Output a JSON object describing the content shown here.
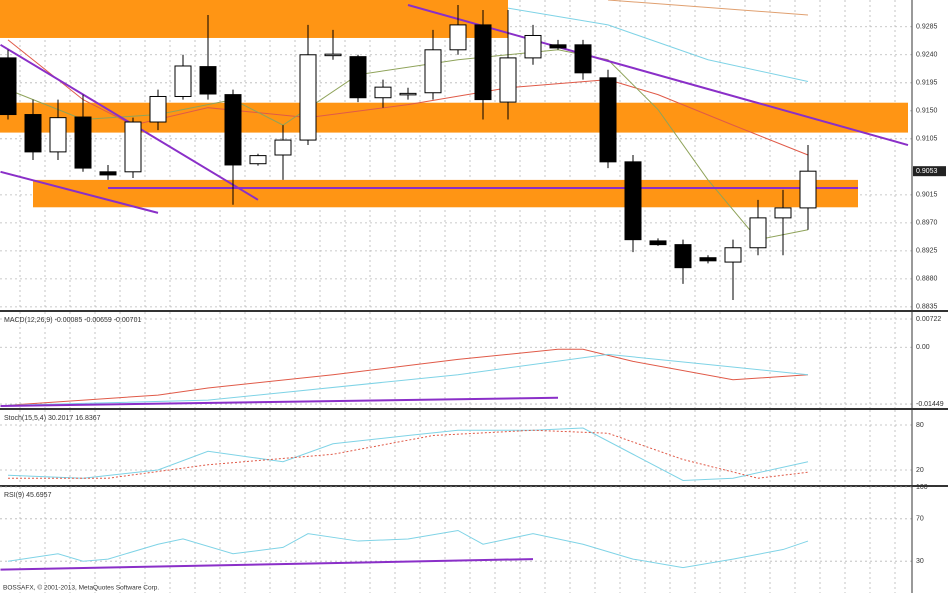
{
  "chart_data": [
    {
      "type": "candlestick",
      "open": [
        0.9235,
        0.9144,
        0.9084,
        0.914,
        0.9052,
        0.9052,
        0.9132,
        0.9173,
        0.9221,
        0.9176,
        0.9065,
        0.9079,
        0.9103,
        0.924,
        0.9237,
        0.9171,
        0.9177,
        0.9179,
        0.9248,
        0.9288,
        0.9164,
        0.9235,
        0.9256,
        0.9256,
        0.9203,
        0.9068,
        0.8941,
        0.8935,
        0.8914,
        0.8907,
        0.893,
        0.8978,
        0.8994
      ],
      "high": [
        0.9248,
        0.9168,
        0.9168,
        0.9176,
        0.9063,
        0.9139,
        0.9184,
        0.924,
        0.9304,
        0.9184,
        0.9081,
        0.9127,
        0.9288,
        0.928,
        0.924,
        0.92,
        0.9187,
        0.928,
        0.932,
        0.9312,
        0.9312,
        0.9288,
        0.9264,
        0.9264,
        0.9216,
        0.9079,
        0.8945,
        0.8943,
        0.8918,
        0.8943,
        0.9007,
        0.9023,
        0.9095
      ],
      "low": [
        0.9136,
        0.9071,
        0.9071,
        0.9052,
        0.9039,
        0.9042,
        0.9119,
        0.9168,
        0.9168,
        0.8999,
        0.9062,
        0.9039,
        0.9095,
        0.9232,
        0.9164,
        0.9155,
        0.9168,
        0.9168,
        0.924,
        0.9136,
        0.9136,
        0.9224,
        0.9248,
        0.92,
        0.9058,
        0.8923,
        0.8933,
        0.8872,
        0.8905,
        0.8846,
        0.8918,
        0.8918,
        0.8959
      ],
      "close": [
        0.9144,
        0.9084,
        0.9139,
        0.9058,
        0.9047,
        0.9132,
        0.9173,
        0.9222,
        0.9177,
        0.9063,
        0.9078,
        0.9103,
        0.924,
        0.9241,
        0.9171,
        0.9188,
        0.9178,
        0.9248,
        0.9288,
        0.9168,
        0.9235,
        0.9271,
        0.9251,
        0.9211,
        0.9068,
        0.8943,
        0.8935,
        0.8898,
        0.8909,
        0.893,
        0.8978,
        0.8994,
        0.9053
      ],
      "ylim": [
        0.883,
        0.9328
      ],
      "yticks": [
        {
          "value": 0.9285,
          "label": "0.9285"
        },
        {
          "value": 0.924,
          "label": "0.9240"
        },
        {
          "value": 0.9195,
          "label": "0.9195"
        },
        {
          "value": 0.915,
          "label": "0.9150"
        },
        {
          "value": 0.9105,
          "label": "0.9105"
        },
        {
          "value": 0.9015,
          "label": "0.9015"
        },
        {
          "value": 0.897,
          "label": "0.8970"
        },
        {
          "value": 0.8925,
          "label": "0.8925"
        },
        {
          "value": 0.888,
          "label": "0.8880"
        },
        {
          "value": 0.8835,
          "label": "0.8835"
        }
      ],
      "last_price": {
        "value": 0.9053,
        "label": "0.9053"
      },
      "bands": [
        {
          "color": "#ff9514",
          "x": [
            -0.4,
            20
          ],
          "range": [
            0.9267,
            0.9328
          ]
        },
        {
          "color": "#ff9514",
          "x": [
            -0.4,
            36
          ],
          "range": [
            0.9115,
            0.9163
          ]
        },
        {
          "color": "#ff9514",
          "x": [
            1,
            34
          ],
          "range": [
            0.8995,
            0.9039
          ]
        }
      ],
      "lines": [
        {
          "color": "#e05a48",
          "x": [
            0,
            3,
            5,
            8,
            12,
            16,
            20,
            24,
            26,
            29,
            32
          ],
          "values": [
            0.9264,
            0.9168,
            0.9127,
            0.9155,
            0.9139,
            0.916,
            0.9187,
            0.92,
            0.9176,
            0.9127,
            0.9079
          ]
        },
        {
          "color": "#8fa35a",
          "x": [
            0,
            3,
            6,
            9,
            11,
            14,
            18,
            22,
            24,
            26,
            28,
            30,
            32
          ],
          "values": [
            0.9184,
            0.9136,
            0.9144,
            0.9168,
            0.9127,
            0.9208,
            0.9232,
            0.9248,
            0.9232,
            0.9152,
            0.9039,
            0.8943,
            0.8959
          ]
        },
        {
          "color": "#7fd3e6",
          "x": [
            20,
            24,
            28,
            32
          ],
          "values": [
            0.9315,
            0.9288,
            0.9232,
            0.9197
          ]
        },
        {
          "color": "#e0a070",
          "x": [
            24,
            32
          ],
          "values": [
            0.9328,
            0.9304
          ]
        },
        {
          "color": "#8a2fc8",
          "x": [
            -0.3,
            10
          ],
          "values": [
            0.9256,
            0.9007
          ]
        },
        {
          "color": "#8a2fc8",
          "x": [
            -0.3,
            6
          ],
          "values": [
            0.9052,
            0.8986
          ]
        },
        {
          "color": "#8a2fc8",
          "x": [
            16,
            36
          ],
          "values": [
            0.932,
            0.9095
          ]
        },
        {
          "color": "#8a2fc8",
          "x": [
            4,
            34
          ],
          "values": [
            0.9026,
            0.9026
          ]
        }
      ]
    },
    {
      "type": "line",
      "title": "MACD(12,26,9) -0.00085 -0.00659 -0.00701",
      "ylim": [
        -0.0155,
        0.009
      ],
      "yticks": [
        0.00722,
        {
          "value": 0,
          "label": "0.00"
        },
        -0.01449
      ],
      "series": [
        {
          "color": "#e05a48",
          "x": [
            0,
            6,
            8,
            13,
            18,
            22,
            23,
            25,
            29,
            32
          ],
          "values": [
            -0.0148,
            -0.0122,
            -0.0104,
            -0.007,
            -0.0031,
            -0.0005,
            -0.0005,
            -0.0036,
            -0.0083,
            -0.007
          ]
        },
        {
          "color": "#7fd3e6",
          "x": [
            0,
            8,
            18,
            24,
            28,
            32
          ],
          "values": [
            -0.0148,
            -0.0135,
            -0.007,
            -0.0018,
            -0.0044,
            -0.007
          ]
        },
        {
          "color": "#8a2fc8",
          "x": [
            -0.3,
            22
          ],
          "values": [
            -0.015,
            -0.0129
          ]
        }
      ]
    },
    {
      "type": "line",
      "title": "Stoch(15,5,4) 30.2017 16.8367",
      "ylim": [
        0,
        100
      ],
      "yticks": [
        20,
        80
      ],
      "series": [
        {
          "color": "#7fd3e6",
          "x": [
            0,
            3,
            6,
            8,
            11,
            13,
            16,
            18,
            21,
            23,
            25,
            27,
            29,
            32
          ],
          "values": [
            13,
            9,
            20,
            45,
            31,
            55,
            66,
            73,
            73,
            76,
            41,
            6,
            9,
            31
          ]
        },
        {
          "color": "#e05a48",
          "dashed": true,
          "x": [
            0,
            4,
            8,
            13,
            17,
            21,
            24,
            27,
            30,
            32
          ],
          "values": [
            9,
            9,
            27,
            41,
            66,
            73,
            69,
            34,
            9,
            17
          ]
        }
      ]
    },
    {
      "type": "line",
      "title": "RSI(9) 45.6957",
      "ylim": [
        0,
        100
      ],
      "yticks": [
        30,
        70,
        100
      ],
      "series": [
        {
          "color": "#7fd3e6",
          "x": [
            0,
            2,
            3,
            4,
            6,
            7,
            9,
            11,
            12,
            14,
            16,
            18,
            19,
            21,
            23,
            25,
            27,
            29,
            31,
            32
          ],
          "values": [
            30,
            37,
            30,
            32,
            46,
            51,
            37,
            43,
            56,
            49,
            51,
            59,
            46,
            56,
            46,
            32,
            24,
            32,
            41,
            49
          ]
        },
        {
          "color": "#8a2fc8",
          "x": [
            -0.3,
            21
          ],
          "values": [
            22,
            32
          ]
        }
      ]
    }
  ],
  "footer": "BOSSAFX, © 2001-2013, MetaQuotes Software Corp."
}
